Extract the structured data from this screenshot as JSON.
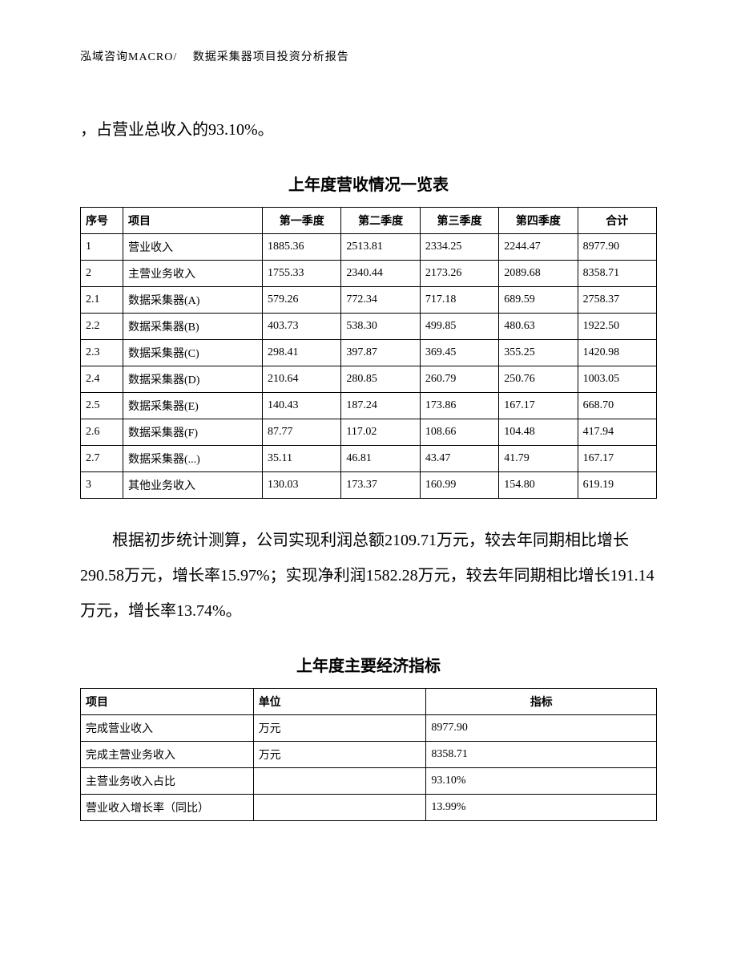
{
  "header": "泓域咨询MACRO/　 数据采集器项目投资分析报告",
  "para1": "，占营业总收入的93.10%。",
  "table1": {
    "title": "上年度营收情况一览表",
    "headers": [
      "序号",
      "项目",
      "第一季度",
      "第二季度",
      "第三季度",
      "第四季度",
      "合计"
    ],
    "rows": [
      [
        "1",
        "营业收入",
        "1885.36",
        "2513.81",
        "2334.25",
        "2244.47",
        "8977.90"
      ],
      [
        "2",
        "主营业务收入",
        "1755.33",
        "2340.44",
        "2173.26",
        "2089.68",
        "8358.71"
      ],
      [
        "2.1",
        "数据采集器(A)",
        "579.26",
        "772.34",
        "717.18",
        "689.59",
        "2758.37"
      ],
      [
        "2.2",
        "数据采集器(B)",
        "403.73",
        "538.30",
        "499.85",
        "480.63",
        "1922.50"
      ],
      [
        "2.3",
        "数据采集器(C)",
        "298.41",
        "397.87",
        "369.45",
        "355.25",
        "1420.98"
      ],
      [
        "2.4",
        "数据采集器(D)",
        "210.64",
        "280.85",
        "260.79",
        "250.76",
        "1003.05"
      ],
      [
        "2.5",
        "数据采集器(E)",
        "140.43",
        "187.24",
        "173.86",
        "167.17",
        "668.70"
      ],
      [
        "2.6",
        "数据采集器(F)",
        "87.77",
        "117.02",
        "108.66",
        "104.48",
        "417.94"
      ],
      [
        "2.7",
        "数据采集器(...)",
        "35.11",
        "46.81",
        "43.47",
        "41.79",
        "167.17"
      ],
      [
        "3",
        "其他业务收入",
        "130.03",
        "173.37",
        "160.99",
        "154.80",
        "619.19"
      ]
    ]
  },
  "para2": "根据初步统计测算，公司实现利润总额2109.71万元，较去年同期相比增长290.58万元，增长率15.97%；实现净利润1582.28万元，较去年同期相比增长191.14万元，增长率13.74%。",
  "table2": {
    "title": "上年度主要经济指标",
    "headers": [
      "项目",
      "单位",
      "指标"
    ],
    "rows": [
      [
        "完成营业收入",
        "万元",
        "8977.90"
      ],
      [
        "完成主营业务收入",
        "万元",
        "8358.71"
      ],
      [
        "主营业务收入占比",
        "",
        "93.10%"
      ],
      [
        "营业收入增长率（同比）",
        "",
        "13.99%"
      ]
    ]
  }
}
